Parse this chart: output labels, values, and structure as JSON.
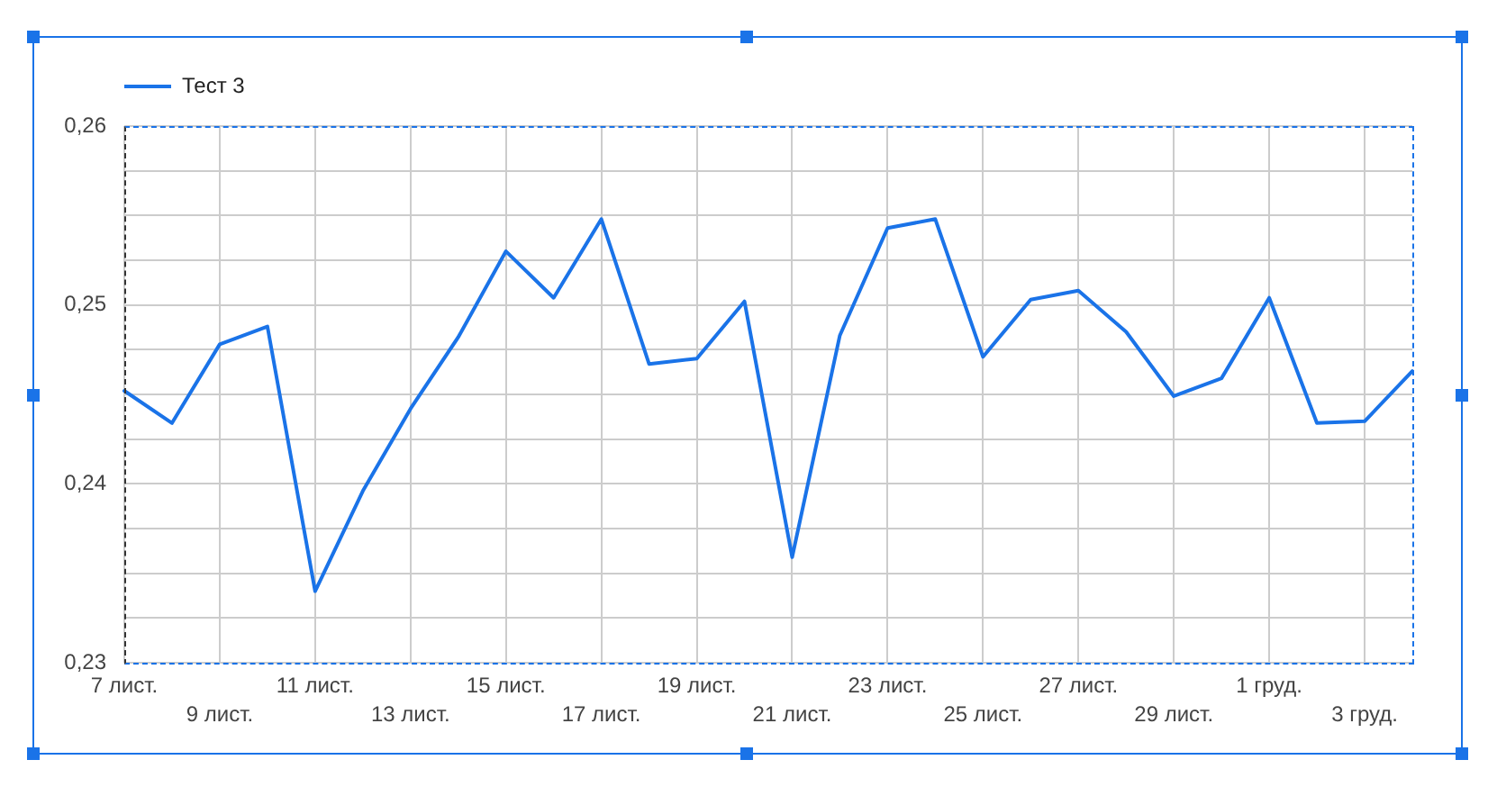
{
  "chart_data": {
    "type": "line",
    "categories": [
      "7 лист.",
      null,
      "9 лист.",
      null,
      "11 лист.",
      null,
      "13 лист.",
      null,
      "15 лист.",
      null,
      "17 лист.",
      null,
      "19 лист.",
      null,
      "21 лист.",
      null,
      "23 лист.",
      null,
      "25 лист.",
      null,
      "27 лист.",
      null,
      "29 лист.",
      null,
      "1 груд.",
      null,
      "3 груд.",
      null
    ],
    "series": [
      {
        "name": "Тест 3",
        "color": "#1a73e8",
        "values": [
          0.2452,
          0.2434,
          0.2478,
          0.2488,
          0.234,
          0.2396,
          0.2442,
          0.2482,
          0.253,
          0.2504,
          0.2548,
          0.2467,
          0.247,
          0.2502,
          0.2359,
          0.2483,
          0.2543,
          0.2548,
          0.2471,
          0.2503,
          0.2508,
          0.2485,
          0.2449,
          0.2459,
          0.2504,
          0.2434,
          0.2435,
          0.2463
        ]
      }
    ],
    "ylim": [
      0.23,
      0.26
    ],
    "yticks": [
      {
        "value": 0.23,
        "label": "0,23"
      },
      {
        "value": 0.2325,
        "label": null
      },
      {
        "value": 0.235,
        "label": null
      },
      {
        "value": 0.2375,
        "label": null
      },
      {
        "value": 0.24,
        "label": "0,24"
      },
      {
        "value": 0.2425,
        "label": null
      },
      {
        "value": 0.245,
        "label": null
      },
      {
        "value": 0.2475,
        "label": null
      },
      {
        "value": 0.25,
        "label": "0,25"
      },
      {
        "value": 0.2525,
        "label": null
      },
      {
        "value": 0.255,
        "label": null
      },
      {
        "value": 0.2575,
        "label": null
      },
      {
        "value": 0.26,
        "label": "0,26"
      }
    ],
    "grid": true,
    "legend": "top left"
  }
}
